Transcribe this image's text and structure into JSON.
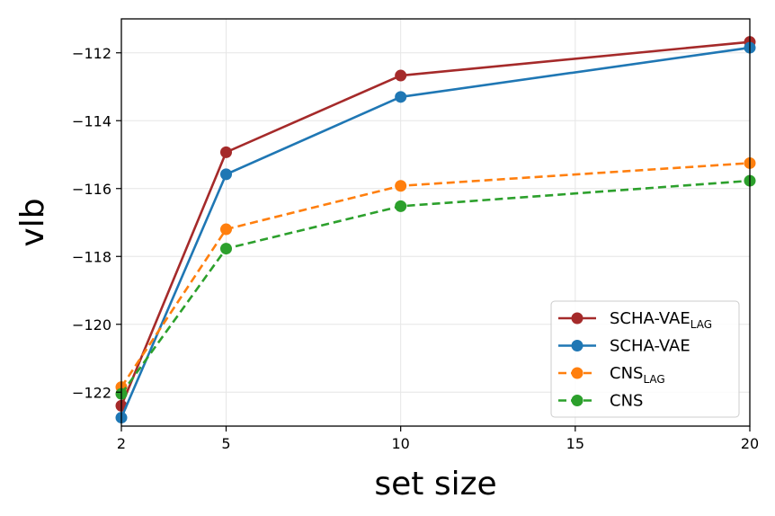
{
  "chart_data": {
    "type": "line",
    "xlabel": "set size",
    "ylabel": "vlb",
    "xlim": [
      2,
      20
    ],
    "ylim": [
      -123,
      -111
    ],
    "x_ticks": [
      2,
      5,
      10,
      15,
      20
    ],
    "y_ticks": [
      -122,
      -120,
      -118,
      -116,
      -114,
      -112
    ],
    "x_tick_labels": [
      "2",
      "5",
      "10",
      "15",
      "20"
    ],
    "y_tick_labels": [
      "−122",
      "−120",
      "−118",
      "−116",
      "−114",
      "−112"
    ],
    "grid": true,
    "legend_position": "lower-right",
    "x": [
      2,
      5,
      10,
      20
    ],
    "series": [
      {
        "name": "SCHA-VAE",
        "subscript": "LAG",
        "color": "#a52a2a",
        "dashed": false,
        "values": [
          -122.4,
          -114.93,
          -112.67,
          -111.68
        ]
      },
      {
        "name": "SCHA-VAE",
        "subscript": "",
        "color": "#1f77b4",
        "dashed": false,
        "values": [
          -122.75,
          -115.58,
          -113.3,
          -111.85
        ]
      },
      {
        "name": "CNS",
        "subscript": "LAG",
        "color": "#ff7f0e",
        "dashed": true,
        "values": [
          -121.85,
          -117.2,
          -115.92,
          -115.25
        ]
      },
      {
        "name": "CNS",
        "subscript": "",
        "color": "#2ca02c",
        "dashed": true,
        "values": [
          -122.05,
          -117.77,
          -116.52,
          -115.77
        ]
      }
    ]
  }
}
